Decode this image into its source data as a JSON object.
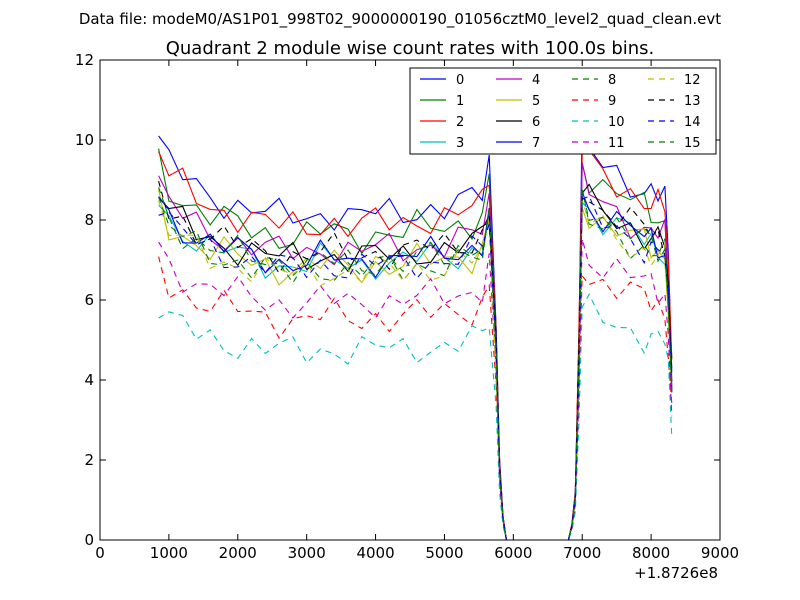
{
  "header": {
    "file_label": "Data file: modeM0/AS1P01_998T02_9000000190_01056cztM0_level2_quad_clean.evt"
  },
  "chart_data": {
    "type": "line",
    "title": "Quadrant 2 module wise count rates with 100.0s bins.",
    "xlabel": "",
    "ylabel": "",
    "xlim": [
      0,
      9000
    ],
    "ylim": [
      0,
      12
    ],
    "x_offset_label": "+1.8726e8",
    "x_ticks": [
      0,
      1000,
      2000,
      3000,
      4000,
      5000,
      6000,
      7000,
      8000,
      9000
    ],
    "y_ticks": [
      0,
      2,
      4,
      6,
      8,
      10,
      12
    ],
    "legend_position": "top-right",
    "grid": false,
    "profile": {
      "x": [
        850,
        1000,
        1200,
        1400,
        1600,
        1800,
        2000,
        2200,
        2400,
        2600,
        2800,
        3000,
        3200,
        3400,
        3600,
        3800,
        4000,
        4200,
        4400,
        4600,
        4800,
        5000,
        5200,
        5400,
        5550,
        5650,
        5750,
        5800,
        5850,
        5900,
        6000,
        6500,
        6800,
        6850,
        6900,
        6950,
        7000,
        7100,
        7300,
        7500,
        7700,
        7900,
        8000,
        8100,
        8200,
        8250,
        8300
      ],
      "y": [
        1.0,
        0.93,
        0.9,
        0.87,
        0.85,
        0.84,
        0.83,
        0.82,
        0.81,
        0.8,
        0.8,
        0.8,
        0.81,
        0.81,
        0.8,
        0.8,
        0.81,
        0.81,
        0.81,
        0.82,
        0.82,
        0.82,
        0.83,
        0.84,
        0.86,
        0.94,
        0.55,
        0.2,
        0.06,
        0.0,
        0.0,
        0.0,
        0.0,
        0.04,
        0.12,
        0.5,
        1.0,
        0.96,
        0.93,
        0.91,
        0.89,
        0.87,
        0.86,
        0.85,
        0.84,
        0.7,
        0.45
      ]
    },
    "series": [
      {
        "name": "0",
        "color": "#0000ff",
        "dash": "solid",
        "base": 10.1
      },
      {
        "name": "1",
        "color": "#008000",
        "dash": "solid",
        "base": 9.5
      },
      {
        "name": "2",
        "color": "#ff0000",
        "dash": "solid",
        "base": 9.8
      },
      {
        "name": "3",
        "color": "#00bfbf",
        "dash": "solid",
        "base": 8.6
      },
      {
        "name": "4",
        "color": "#bf00bf",
        "dash": "solid",
        "base": 9.0
      },
      {
        "name": "5",
        "color": "#bfbf00",
        "dash": "solid",
        "base": 8.5
      },
      {
        "name": "6",
        "color": "#000000",
        "dash": "solid",
        "base": 8.8
      },
      {
        "name": "7",
        "color": "#0000ff",
        "dash": "solid",
        "base": 8.7
      },
      {
        "name": "8",
        "color": "#008000",
        "dash": "dashed",
        "base": 8.4
      },
      {
        "name": "9",
        "color": "#ff0000",
        "dash": "dashed",
        "base": 6.9
      },
      {
        "name": "10",
        "color": "#00bfbf",
        "dash": "dashed",
        "base": 5.9
      },
      {
        "name": "11",
        "color": "#bf00bf",
        "dash": "dashed",
        "base": 7.4
      },
      {
        "name": "12",
        "color": "#bfbf00",
        "dash": "dashed",
        "base": 8.3
      },
      {
        "name": "13",
        "color": "#000000",
        "dash": "dashed",
        "base": 8.9
      },
      {
        "name": "14",
        "color": "#0000ff",
        "dash": "dashed",
        "base": 8.5
      },
      {
        "name": "15",
        "color": "#008000",
        "dash": "dashed",
        "base": 8.6
      }
    ]
  }
}
